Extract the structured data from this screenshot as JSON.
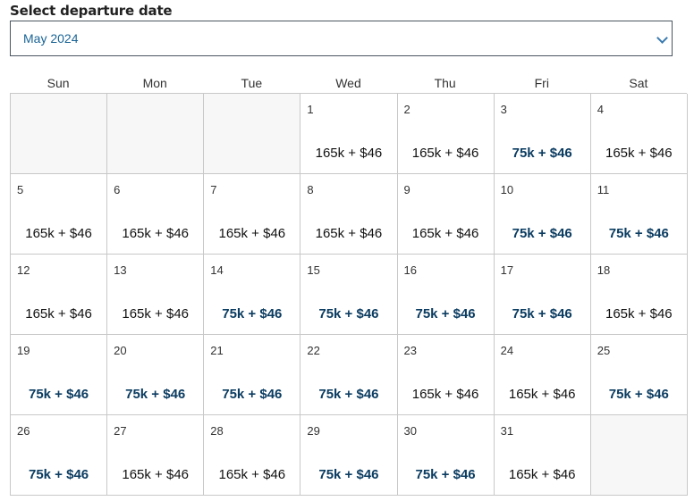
{
  "label": "Select departure date",
  "month_select": {
    "value": "May 2024",
    "icon": "chevron-down-icon"
  },
  "weekdays": [
    "Sun",
    "Mon",
    "Tue",
    "Wed",
    "Thu",
    "Fri",
    "Sat"
  ],
  "colors": {
    "low_price": "#0b3c61",
    "regular_price": "#111111",
    "select_text": "#1a6496"
  },
  "leading_empty": 3,
  "trailing_empty": 1,
  "days": [
    {
      "day": "1",
      "price": "165k + $46",
      "low": false
    },
    {
      "day": "2",
      "price": "165k + $46",
      "low": false
    },
    {
      "day": "3",
      "price": "75k + $46",
      "low": true
    },
    {
      "day": "4",
      "price": "165k + $46",
      "low": false
    },
    {
      "day": "5",
      "price": "165k + $46",
      "low": false
    },
    {
      "day": "6",
      "price": "165k + $46",
      "low": false
    },
    {
      "day": "7",
      "price": "165k + $46",
      "low": false
    },
    {
      "day": "8",
      "price": "165k + $46",
      "low": false
    },
    {
      "day": "9",
      "price": "165k + $46",
      "low": false
    },
    {
      "day": "10",
      "price": "75k + $46",
      "low": true
    },
    {
      "day": "11",
      "price": "75k + $46",
      "low": true
    },
    {
      "day": "12",
      "price": "165k + $46",
      "low": false
    },
    {
      "day": "13",
      "price": "165k + $46",
      "low": false
    },
    {
      "day": "14",
      "price": "75k + $46",
      "low": true
    },
    {
      "day": "15",
      "price": "75k + $46",
      "low": true
    },
    {
      "day": "16",
      "price": "75k + $46",
      "low": true
    },
    {
      "day": "17",
      "price": "75k + $46",
      "low": true
    },
    {
      "day": "18",
      "price": "165k + $46",
      "low": false
    },
    {
      "day": "19",
      "price": "75k + $46",
      "low": true
    },
    {
      "day": "20",
      "price": "75k + $46",
      "low": true
    },
    {
      "day": "21",
      "price": "75k + $46",
      "low": true
    },
    {
      "day": "22",
      "price": "75k + $46",
      "low": true
    },
    {
      "day": "23",
      "price": "165k + $46",
      "low": false
    },
    {
      "day": "24",
      "price": "165k + $46",
      "low": false
    },
    {
      "day": "25",
      "price": "75k + $46",
      "low": true
    },
    {
      "day": "26",
      "price": "75k + $46",
      "low": true
    },
    {
      "day": "27",
      "price": "165k + $46",
      "low": false
    },
    {
      "day": "28",
      "price": "165k + $46",
      "low": false
    },
    {
      "day": "29",
      "price": "75k + $46",
      "low": true
    },
    {
      "day": "30",
      "price": "75k + $46",
      "low": true
    },
    {
      "day": "31",
      "price": "165k + $46",
      "low": false
    }
  ]
}
